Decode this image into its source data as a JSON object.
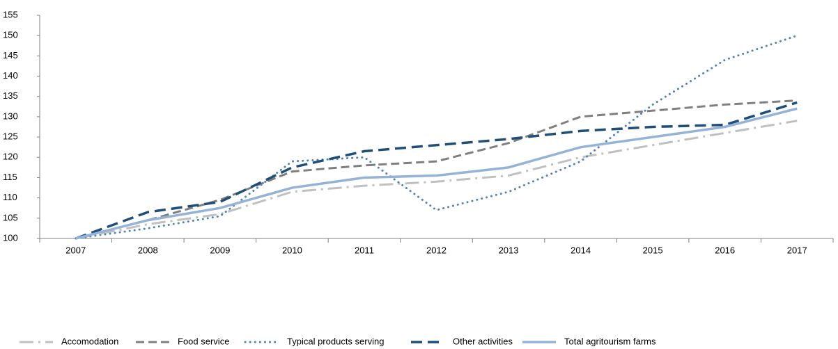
{
  "chart_data": {
    "type": "line",
    "categories": [
      "2007",
      "2008",
      "2009",
      "2010",
      "2011",
      "2012",
      "2013",
      "2014",
      "2015",
      "2016",
      "2017"
    ],
    "series": [
      {
        "name": "Accomodation",
        "color": "#c0c0c0",
        "values": [
          100,
          103.5,
          106,
          111.5,
          113,
          114,
          115.5,
          120,
          123,
          126,
          129
        ]
      },
      {
        "name": "Food service",
        "color": "#7f7f7f",
        "values": [
          100,
          104.5,
          109.5,
          116.5,
          118,
          119,
          123.5,
          130,
          131.5,
          133,
          134
        ]
      },
      {
        "name": "Typical products serving",
        "color": "#4f81bd",
        "values": [
          100,
          102.5,
          105.5,
          119,
          120,
          107,
          111.5,
          119,
          133,
          144,
          150
        ]
      },
      {
        "name": "Other activities",
        "color": "#1f4e79",
        "values": [
          100,
          106.5,
          109,
          117.5,
          121.5,
          123,
          124.5,
          126.5,
          127.5,
          128,
          133.5
        ]
      },
      {
        "name": "Total agritourism farms",
        "color": "#95b3d7",
        "values": [
          100,
          104.5,
          107.5,
          112.5,
          115,
          115.5,
          117.5,
          122.5,
          125,
          127.5,
          132
        ]
      }
    ],
    "ylim": [
      100,
      155
    ],
    "yticks": [
      100,
      105,
      110,
      115,
      120,
      125,
      130,
      135,
      140,
      145,
      150,
      155
    ],
    "grid": false,
    "legend": "bottom"
  }
}
